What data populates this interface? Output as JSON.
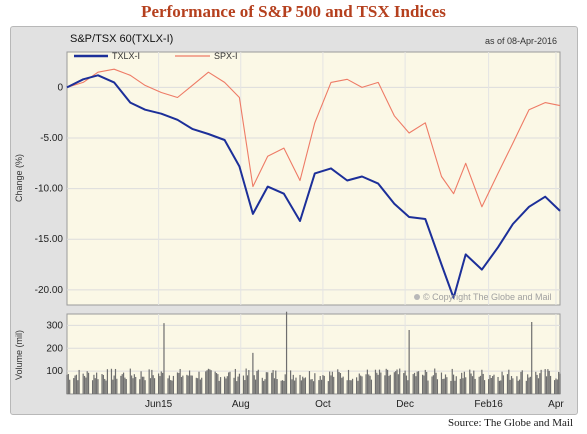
{
  "title": "Performance of S&P 500 and TSX Indices",
  "source": "Source: The Globe and Mail",
  "chart_header": {
    "symbol": "S&P/TSX 60(TXLX-I)",
    "as_of": "as of 08-Apr-2016"
  },
  "copyright": "© Copyright The Globe and Mail",
  "colors": {
    "tsx": "#1c2f99",
    "spx": "#ee7b66",
    "plot_bg": "#fbf8e6",
    "volume_bar": "#6e6e6e"
  },
  "chart_data": [
    {
      "type": "line",
      "ylabel": "Change (%)",
      "ylim": [
        -21.5,
        3.5
      ],
      "yticks": [
        {
          "value": 0,
          "label": "0"
        },
        {
          "value": -5,
          "label": "-5.00"
        },
        {
          "value": -10,
          "label": "-10.00"
        },
        {
          "value": -15,
          "label": "-15.00"
        },
        {
          "value": -20,
          "label": "-20.00"
        }
      ],
      "grid": true,
      "legend": "top-left",
      "x_labels": [
        "Jun15",
        "Aug",
        "Oct",
        "Dec",
        "Feb16",
        "Apr"
      ],
      "x": [
        "2015-04-08",
        "2015-04-20",
        "2015-05-01",
        "2015-05-13",
        "2015-05-25",
        "2015-06-05",
        "2015-06-17",
        "2015-06-29",
        "2015-07-10",
        "2015-07-22",
        "2015-08-03",
        "2015-08-14",
        "2015-08-24",
        "2015-09-04",
        "2015-09-16",
        "2015-09-28",
        "2015-10-09",
        "2015-10-21",
        "2015-11-02",
        "2015-11-13",
        "2015-11-25",
        "2015-12-07",
        "2015-12-18",
        "2015-12-30",
        "2016-01-11",
        "2016-01-20",
        "2016-01-29",
        "2016-02-10",
        "2016-02-22",
        "2016-03-04",
        "2016-03-16",
        "2016-03-28",
        "2016-04-08"
      ],
      "series": [
        {
          "name": "TXLX-I",
          "values": [
            0,
            0.8,
            1.2,
            0.5,
            -1.5,
            -2.2,
            -2.6,
            -3.2,
            -4.1,
            -4.6,
            -5.2,
            -7.8,
            -12.5,
            -9.8,
            -10.5,
            -13.2,
            -8.5,
            -8.0,
            -9.2,
            -8.8,
            -9.5,
            -11.5,
            -12.8,
            -13.0,
            -17.5,
            -20.8,
            -16.5,
            -18.0,
            -15.8,
            -13.5,
            -11.8,
            -10.8,
            -12.2
          ]
        },
        {
          "name": "SPX-I",
          "values": [
            0,
            0.5,
            1.5,
            1.8,
            1.2,
            0.2,
            -0.5,
            -1.0,
            0.2,
            1.5,
            0.5,
            -1.0,
            -9.8,
            -6.8,
            -6.0,
            -9.2,
            -3.5,
            0.5,
            0.8,
            0.0,
            0.5,
            -2.8,
            -4.5,
            -3.5,
            -8.8,
            -10.5,
            -7.5,
            -11.8,
            -8.5,
            -5.5,
            -2.2,
            -1.5,
            -1.8
          ]
        }
      ]
    },
    {
      "type": "bar",
      "ylabel": "Volume (mil)",
      "ylim": [
        0,
        350
      ],
      "yticks": [
        {
          "value": 100,
          "label": "100"
        },
        {
          "value": 200,
          "label": "200"
        },
        {
          "value": 300,
          "label": "300"
        }
      ],
      "base_level": 80,
      "spikes": [
        {
          "date": "2015-06-19",
          "value": 310
        },
        {
          "date": "2015-08-24",
          "value": 180
        },
        {
          "date": "2015-09-18",
          "value": 360
        },
        {
          "date": "2015-12-18",
          "value": 280
        },
        {
          "date": "2016-03-18",
          "value": 315
        }
      ]
    }
  ]
}
